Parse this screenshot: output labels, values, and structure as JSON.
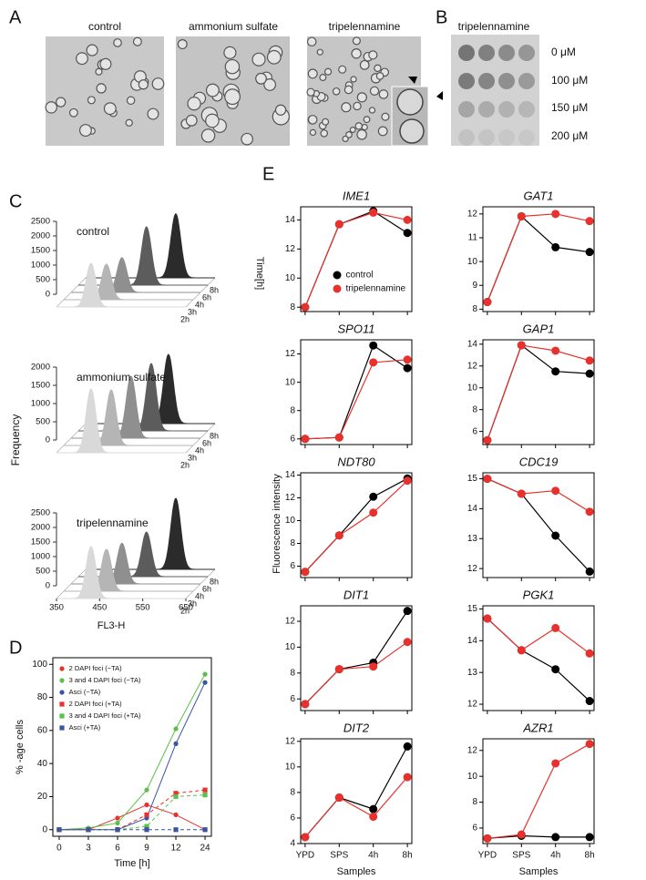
{
  "panel_labels": [
    "A",
    "B",
    "C",
    "D",
    "E"
  ],
  "panel_a": {
    "captions": [
      "control",
      "ammonium sulfate",
      "tripelennamine"
    ]
  },
  "panel_b": {
    "title": "tripelennamine",
    "concentrations": [
      "0 μM",
      "100 μM",
      "150 μM",
      "200 μM"
    ]
  },
  "panel_e": {
    "y_label": "Fluorescence intensity",
    "x_label": "Samples"
  },
  "chart_data": [
    {
      "type": "ridge3d",
      "title": "control",
      "z_label": "Time[h]",
      "xlim": [
        350,
        650
      ],
      "ylim": [
        0,
        2500
      ],
      "yticks": [
        0,
        500,
        1000,
        1500,
        2000,
        2500
      ],
      "series": [
        {
          "name": "2h",
          "color": "#d9d9d9",
          "peak_x": 430,
          "peak_height": 1500
        },
        {
          "name": "3h",
          "color": "#b5b5b5",
          "peak_x": 449,
          "peak_height": 1220
        },
        {
          "name": "4h",
          "color": "#8f8f8f",
          "peak_x": 468,
          "peak_height": 1190
        },
        {
          "name": "6h",
          "color": "#5c5c5c",
          "peak_x": 508,
          "peak_height": 2000
        },
        {
          "name": "8h",
          "color": "#2b2b2b",
          "peak_x": 559,
          "peak_height": 2200
        }
      ]
    },
    {
      "type": "ridge3d",
      "title": "ammonium sulfate",
      "y_label": "Frequency",
      "xlim": [
        350,
        650
      ],
      "ylim": [
        0,
        2000
      ],
      "yticks": [
        0,
        500,
        1000,
        1500,
        2000
      ],
      "series": [
        {
          "name": "2h",
          "color": "#d9d9d9",
          "peak_x": 430,
          "peak_height": 1750
        },
        {
          "name": "3h",
          "color": "#b5b5b5",
          "peak_x": 460,
          "peak_height": 1525
        },
        {
          "name": "4h",
          "color": "#8f8f8f",
          "peak_x": 489,
          "peak_height": 1700
        },
        {
          "name": "6h",
          "color": "#5c5c5c",
          "peak_x": 519,
          "peak_height": 1850
        },
        {
          "name": "8h",
          "color": "#2b2b2b",
          "peak_x": 542,
          "peak_height": 1900
        }
      ]
    },
    {
      "type": "ridge3d",
      "title": "tripelennamine",
      "x_label": "FL3-H",
      "xlim": [
        350,
        650
      ],
      "xticks": [
        350,
        450,
        550,
        650
      ],
      "ylim": [
        0,
        2500
      ],
      "yticks": [
        0,
        500,
        1000,
        1500,
        2000,
        2500
      ],
      "series": [
        {
          "name": "2h",
          "color": "#d9d9d9",
          "peak_x": 430,
          "peak_height": 1780
        },
        {
          "name": "3h",
          "color": "#b5b5b5",
          "peak_x": 449,
          "peak_height": 1440
        },
        {
          "name": "4h",
          "color": "#8f8f8f",
          "peak_x": 468,
          "peak_height": 1400
        },
        {
          "name": "6h",
          "color": "#5c5c5c",
          "peak_x": 508,
          "peak_height": 1530
        },
        {
          "name": "8h",
          "color": "#2b2b2b",
          "peak_x": 559,
          "peak_height": 2440
        }
      ]
    },
    {
      "type": "line",
      "x_label": "Time [h]",
      "y_label": "% -age cells",
      "legend": "upper left",
      "categories": [
        "0",
        "3",
        "6",
        "9",
        "12",
        "24"
      ],
      "ylim": [
        -4,
        104
      ],
      "yticks": [
        0,
        20,
        40,
        60,
        80,
        100
      ],
      "series": [
        {
          "name": "2 DAPI foci (−TA)",
          "color": "#e8312d",
          "marker": "circle",
          "values": [
            0,
            0,
            7,
            15,
            9,
            0
          ]
        },
        {
          "name": "3 and 4 DAPI foci (−TA)",
          "color": "#59c04a",
          "marker": "circle",
          "values": [
            0,
            1,
            4,
            24,
            61,
            94
          ]
        },
        {
          "name": "Asci (−TA)",
          "color": "#3a53a4",
          "marker": "circle",
          "values": [
            0,
            0,
            0,
            7,
            52,
            89
          ]
        },
        {
          "name": "2 DAPI foci (+TA)",
          "color": "#e8312d",
          "marker": "square",
          "dash": true,
          "values": [
            0,
            0,
            0,
            9,
            22,
            24
          ]
        },
        {
          "name": "3 and 4 DAPI foci (+TA)",
          "color": "#59c04a",
          "marker": "square",
          "dash": true,
          "values": [
            0,
            0,
            0,
            2,
            20,
            21
          ]
        },
        {
          "name": "Asci (+TA)",
          "color": "#3a53a4",
          "marker": "square",
          "dash": true,
          "values": [
            0,
            0,
            0,
            0,
            0,
            0
          ]
        }
      ]
    },
    {
      "type": "line",
      "title": "IME1",
      "legend": "lower right",
      "categories": [
        "YPD",
        "SPS",
        "4h",
        "8h"
      ],
      "ylim": [
        7.7,
        14.9
      ],
      "yticks": [
        8,
        10,
        12,
        14
      ],
      "series": [
        {
          "name": "control",
          "color": "#000000",
          "values": [
            8.0,
            13.7,
            14.6,
            13.1
          ]
        },
        {
          "name": "tripelennamine",
          "color": "#e8312d",
          "values": [
            8.0,
            13.7,
            14.5,
            14.0
          ]
        }
      ]
    },
    {
      "type": "line",
      "title": "GAT1",
      "categories": [
        "YPD",
        "SPS",
        "4h",
        "8h"
      ],
      "ylim": [
        7.9,
        12.3
      ],
      "yticks": [
        8,
        9,
        10,
        11,
        12
      ],
      "series": [
        {
          "name": "control",
          "color": "#000000",
          "values": [
            8.3,
            11.9,
            10.6,
            10.4
          ]
        },
        {
          "name": "tripelennamine",
          "color": "#e8312d",
          "values": [
            8.3,
            11.9,
            12.0,
            11.7
          ]
        }
      ]
    },
    {
      "type": "line",
      "title": "SPO11",
      "categories": [
        "YPD",
        "SPS",
        "4h",
        "8h"
      ],
      "ylim": [
        5.6,
        13.0
      ],
      "yticks": [
        6,
        8,
        10,
        12
      ],
      "series": [
        {
          "name": "control",
          "color": "#000000",
          "values": [
            6.0,
            6.1,
            12.6,
            11.0
          ]
        },
        {
          "name": "tripelennamine",
          "color": "#e8312d",
          "values": [
            6.0,
            6.1,
            11.4,
            11.6
          ]
        }
      ]
    },
    {
      "type": "line",
      "title": "GAP1",
      "categories": [
        "YPD",
        "SPS",
        "4h",
        "8h"
      ],
      "ylim": [
        4.8,
        14.4
      ],
      "yticks": [
        6,
        8,
        10,
        12,
        14
      ],
      "series": [
        {
          "name": "control",
          "color": "#000000",
          "values": [
            5.2,
            13.9,
            11.5,
            11.3
          ]
        },
        {
          "name": "tripelennamine",
          "color": "#e8312d",
          "values": [
            5.2,
            13.9,
            13.4,
            12.5
          ]
        }
      ]
    },
    {
      "type": "line",
      "title": "NDT80",
      "categories": [
        "YPD",
        "SPS",
        "4h",
        "8h"
      ],
      "ylim": [
        5.0,
        14.2
      ],
      "yticks": [
        6,
        8,
        10,
        12,
        14
      ],
      "series": [
        {
          "name": "control",
          "color": "#000000",
          "values": [
            5.5,
            8.7,
            12.1,
            13.7
          ]
        },
        {
          "name": "tripelennamine",
          "color": "#e8312d",
          "values": [
            5.5,
            8.7,
            10.7,
            13.5
          ]
        }
      ]
    },
    {
      "type": "line",
      "title": "CDC19",
      "categories": [
        "YPD",
        "SPS",
        "4h",
        "8h"
      ],
      "ylim": [
        11.7,
        15.2
      ],
      "yticks": [
        12,
        13,
        14,
        15
      ],
      "series": [
        {
          "name": "control",
          "color": "#000000",
          "values": [
            15.0,
            14.5,
            13.1,
            11.9
          ]
        },
        {
          "name": "tripelennamine",
          "color": "#e8312d",
          "values": [
            15.0,
            14.5,
            14.6,
            13.9
          ]
        }
      ]
    },
    {
      "type": "line",
      "title": "DIT1",
      "categories": [
        "YPD",
        "SPS",
        "4h",
        "8h"
      ],
      "ylim": [
        5.1,
        13.2
      ],
      "yticks": [
        6,
        8,
        10,
        12
      ],
      "series": [
        {
          "name": "control",
          "color": "#000000",
          "values": [
            5.6,
            8.3,
            8.8,
            12.8
          ]
        },
        {
          "name": "tripelennamine",
          "color": "#e8312d",
          "values": [
            5.6,
            8.3,
            8.5,
            10.4
          ]
        }
      ]
    },
    {
      "type": "line",
      "title": "PGK1",
      "categories": [
        "YPD",
        "SPS",
        "4h",
        "8h"
      ],
      "ylim": [
        11.8,
        15.1
      ],
      "yticks": [
        12,
        13,
        14,
        15
      ],
      "series": [
        {
          "name": "control",
          "color": "#000000",
          "values": [
            14.7,
            13.7,
            13.1,
            12.1
          ]
        },
        {
          "name": "tripelennamine",
          "color": "#e8312d",
          "values": [
            14.7,
            13.7,
            14.4,
            13.6
          ]
        }
      ]
    },
    {
      "type": "line",
      "title": "DIT2",
      "categories": [
        "YPD",
        "SPS",
        "4h",
        "8h"
      ],
      "ylim": [
        4.0,
        12.2
      ],
      "yticks": [
        4,
        6,
        8,
        10,
        12
      ],
      "series": [
        {
          "name": "control",
          "color": "#000000",
          "values": [
            4.5,
            7.6,
            6.7,
            11.6
          ]
        },
        {
          "name": "tripelennamine",
          "color": "#e8312d",
          "values": [
            4.5,
            7.6,
            6.1,
            9.2
          ]
        }
      ]
    },
    {
      "type": "line",
      "title": "AZR1",
      "categories": [
        "YPD",
        "SPS",
        "4h",
        "8h"
      ],
      "ylim": [
        4.8,
        12.9
      ],
      "yticks": [
        6,
        8,
        10,
        12
      ],
      "series": [
        {
          "name": "control",
          "color": "#000000",
          "values": [
            5.2,
            5.4,
            5.3,
            5.3
          ]
        },
        {
          "name": "tripelennamine",
          "color": "#e8312d",
          "values": [
            5.2,
            5.5,
            11.0,
            12.5
          ]
        }
      ]
    }
  ]
}
